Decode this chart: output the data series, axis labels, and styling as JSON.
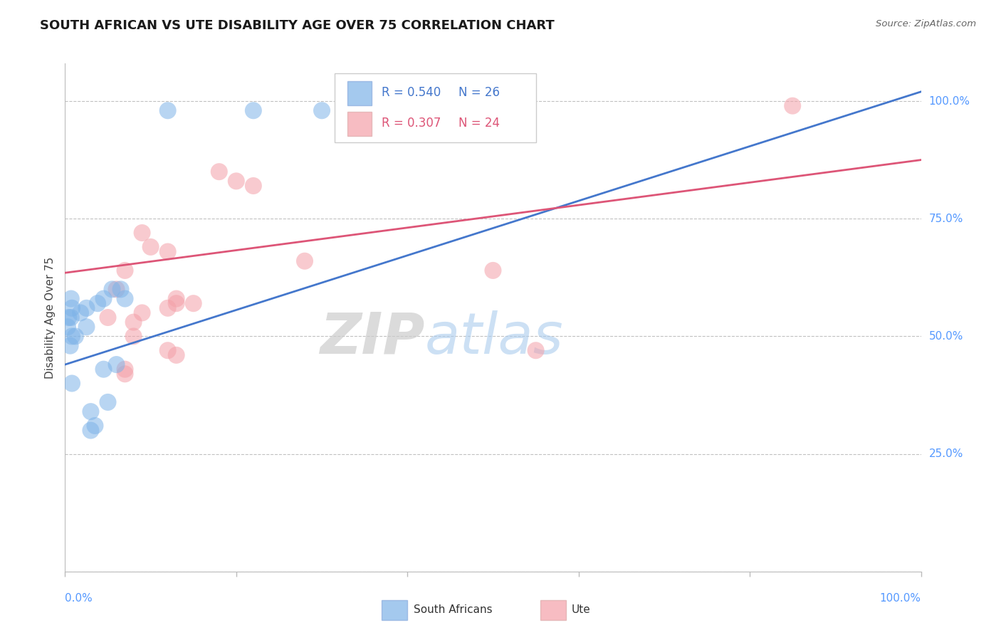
{
  "title": "SOUTH AFRICAN VS UTE DISABILITY AGE OVER 75 CORRELATION CHART",
  "source": "Source: ZipAtlas.com",
  "ylabel": "Disability Age Over 75",
  "legend_blue_r": "R = 0.540",
  "legend_blue_n": "N = 26",
  "legend_pink_r": "R = 0.307",
  "legend_pink_n": "N = 24",
  "watermark_zip": "ZIP",
  "watermark_atlas": "atlas",
  "blue_color": "#7EB3E8",
  "pink_color": "#F4A0A8",
  "blue_line_color": "#4477CC",
  "pink_line_color": "#DD5577",
  "right_label_color": "#5599FF",
  "blue_scatter_x": [
    0.12,
    0.22,
    0.3,
    0.008,
    0.018,
    0.012,
    0.007,
    0.025,
    0.008,
    0.006,
    0.003,
    0.004,
    0.007,
    0.025,
    0.045,
    0.055,
    0.038,
    0.065,
    0.07,
    0.03,
    0.035,
    0.05,
    0.008,
    0.03,
    0.045,
    0.06
  ],
  "blue_scatter_y": [
    0.98,
    0.98,
    0.98,
    0.56,
    0.55,
    0.5,
    0.54,
    0.52,
    0.5,
    0.48,
    0.52,
    0.54,
    0.58,
    0.56,
    0.58,
    0.6,
    0.57,
    0.6,
    0.58,
    0.34,
    0.31,
    0.36,
    0.4,
    0.3,
    0.43,
    0.44
  ],
  "pink_scatter_x": [
    0.18,
    0.2,
    0.22,
    0.09,
    0.1,
    0.12,
    0.07,
    0.06,
    0.12,
    0.13,
    0.05,
    0.09,
    0.13,
    0.55,
    0.15,
    0.28,
    0.5,
    0.85,
    0.08,
    0.08,
    0.13,
    0.12,
    0.07,
    0.07
  ],
  "pink_scatter_y": [
    0.85,
    0.83,
    0.82,
    0.72,
    0.69,
    0.68,
    0.64,
    0.6,
    0.56,
    0.58,
    0.54,
    0.55,
    0.57,
    0.47,
    0.57,
    0.66,
    0.64,
    0.99,
    0.53,
    0.5,
    0.46,
    0.47,
    0.42,
    0.43
  ],
  "xmin": 0.0,
  "xmax": 1.0,
  "ymin": 0.0,
  "ymax": 1.08,
  "blue_trend": [
    0.0,
    1.0,
    0.44,
    1.02
  ],
  "pink_trend": [
    0.0,
    1.0,
    0.635,
    0.875
  ]
}
